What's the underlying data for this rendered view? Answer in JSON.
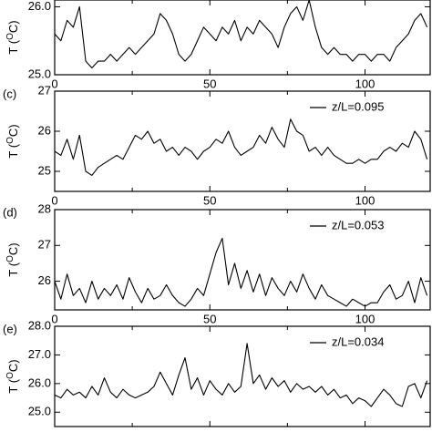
{
  "chart_data": [
    {
      "type": "line",
      "ylabel": {
        "prefix": "T (",
        "sup": "O",
        "suffix": "C)"
      },
      "x": [
        0,
        2,
        4,
        6,
        8,
        10,
        12,
        14,
        16,
        18,
        20,
        22,
        24,
        26,
        28,
        30,
        32,
        34,
        36,
        38,
        40,
        42,
        44,
        46,
        48,
        50,
        52,
        54,
        56,
        58,
        60,
        62,
        64,
        66,
        68,
        70,
        72,
        74,
        76,
        78,
        80,
        82,
        84,
        86,
        88,
        90,
        92,
        94,
        96,
        98,
        100,
        102,
        104,
        106,
        108,
        110,
        112,
        114,
        116,
        118,
        120
      ],
      "series": [
        {
          "color": "#000000",
          "values": [
            25.6,
            25.5,
            25.8,
            25.7,
            26.0,
            25.2,
            25.1,
            25.2,
            25.2,
            25.3,
            25.2,
            25.3,
            25.4,
            25.3,
            25.4,
            25.5,
            25.6,
            25.9,
            25.8,
            25.6,
            25.3,
            25.2,
            25.3,
            25.5,
            25.7,
            25.6,
            25.5,
            25.7,
            25.6,
            25.8,
            25.5,
            25.7,
            25.6,
            25.8,
            25.7,
            25.6,
            25.4,
            25.7,
            25.9,
            26.0,
            25.8,
            26.1,
            25.7,
            25.4,
            25.3,
            25.4,
            25.3,
            25.3,
            25.2,
            25.3,
            25.3,
            25.2,
            25.3,
            25.3,
            25.2,
            25.4,
            25.5,
            25.6,
            25.8,
            25.9,
            25.7
          ]
        }
      ],
      "xlim": [
        0,
        121
      ],
      "xticks": [
        0,
        50,
        100
      ],
      "xminor": [
        25,
        75
      ],
      "xtick_labels": true,
      "ylim": [
        25.0,
        26.1
      ],
      "yticks": [
        {
          "value": 25,
          "label": "25.0"
        },
        {
          "value": 26,
          "label": "26.0"
        }
      ]
    },
    {
      "type": "line",
      "panel_label": "(c)",
      "ylabel": {
        "prefix": "T (",
        "sup": "O",
        "suffix": "C)"
      },
      "x": [
        0,
        2,
        4,
        6,
        8,
        10,
        12,
        14,
        16,
        18,
        20,
        22,
        24,
        26,
        28,
        30,
        32,
        34,
        36,
        38,
        40,
        42,
        44,
        46,
        48,
        50,
        52,
        54,
        56,
        58,
        60,
        62,
        64,
        66,
        68,
        70,
        72,
        74,
        76,
        78,
        80,
        82,
        84,
        86,
        88,
        90,
        92,
        94,
        96,
        98,
        100,
        102,
        104,
        106,
        108,
        110,
        112,
        114,
        116,
        118,
        120
      ],
      "series": [
        {
          "name": "z/L=0.095",
          "color": "#000000",
          "values": [
            25.5,
            25.4,
            25.8,
            25.3,
            25.9,
            25.0,
            24.9,
            25.1,
            25.2,
            25.3,
            25.4,
            25.3,
            25.6,
            25.9,
            25.8,
            26.0,
            25.7,
            25.8,
            25.5,
            25.6,
            25.4,
            25.6,
            25.5,
            25.3,
            25.5,
            25.6,
            25.8,
            25.7,
            26.0,
            25.6,
            25.4,
            25.5,
            25.6,
            25.9,
            25.7,
            26.1,
            25.8,
            25.6,
            26.3,
            26.0,
            25.9,
            25.5,
            25.6,
            25.4,
            25.6,
            25.4,
            25.3,
            25.2,
            25.2,
            25.3,
            25.2,
            25.3,
            25.3,
            25.5,
            25.6,
            25.5,
            25.7,
            25.6,
            26.0,
            25.8,
            25.3
          ]
        }
      ],
      "xlim": [
        0,
        121
      ],
      "xticks": [
        0,
        50,
        100
      ],
      "xminor": [
        25,
        75
      ],
      "xtick_labels": true,
      "ylim": [
        24.5,
        27.0
      ],
      "yticks": [
        25,
        26,
        27
      ]
    },
    {
      "type": "line",
      "panel_label": "(d)",
      "ylabel": {
        "prefix": "T (",
        "sup": "O",
        "suffix": "C)"
      },
      "x": [
        0,
        2,
        4,
        6,
        8,
        10,
        12,
        14,
        16,
        18,
        20,
        22,
        24,
        26,
        28,
        30,
        32,
        34,
        36,
        38,
        40,
        42,
        44,
        46,
        48,
        50,
        52,
        54,
        56,
        58,
        60,
        62,
        64,
        66,
        68,
        70,
        72,
        74,
        76,
        78,
        80,
        82,
        84,
        86,
        88,
        90,
        92,
        94,
        96,
        98,
        100,
        102,
        104,
        106,
        108,
        110,
        112,
        114,
        116,
        118,
        120
      ],
      "series": [
        {
          "name": "z/L=0.053",
          "color": "#000000",
          "values": [
            26.0,
            25.5,
            26.2,
            25.6,
            25.8,
            25.4,
            26.0,
            25.5,
            25.8,
            25.6,
            25.9,
            25.5,
            26.1,
            25.7,
            25.4,
            25.8,
            25.5,
            25.6,
            25.9,
            25.6,
            25.4,
            25.3,
            25.5,
            25.8,
            25.6,
            26.2,
            26.8,
            27.2,
            25.9,
            26.5,
            25.8,
            26.3,
            25.7,
            26.2,
            25.6,
            26.1,
            25.8,
            25.6,
            26.0,
            25.7,
            26.2,
            25.8,
            25.5,
            25.9,
            25.6,
            25.5,
            25.4,
            25.3,
            25.5,
            25.4,
            25.3,
            25.4,
            25.4,
            25.7,
            25.9,
            25.5,
            25.6,
            26.0,
            25.4,
            26.1,
            25.6
          ]
        }
      ],
      "xlim": [
        0,
        121
      ],
      "xticks": [
        0,
        50,
        100
      ],
      "xminor": [
        25,
        75
      ],
      "xtick_labels": true,
      "ylim": [
        25.2,
        28.0
      ],
      "yticks": [
        26,
        27,
        28
      ]
    },
    {
      "type": "line",
      "panel_label": "(e)",
      "ylabel": {
        "prefix": "T (",
        "sup": "O",
        "suffix": "C)"
      },
      "x": [
        0,
        2,
        4,
        6,
        8,
        10,
        12,
        14,
        16,
        18,
        20,
        22,
        24,
        26,
        28,
        30,
        32,
        34,
        36,
        38,
        40,
        42,
        44,
        46,
        48,
        50,
        52,
        54,
        56,
        58,
        60,
        62,
        64,
        66,
        68,
        70,
        72,
        74,
        76,
        78,
        80,
        82,
        84,
        86,
        88,
        90,
        92,
        94,
        96,
        98,
        100,
        102,
        104,
        106,
        108,
        110,
        112,
        114,
        116,
        118,
        120
      ],
      "series": [
        {
          "name": "z/L=0.034",
          "color": "#000000",
          "values": [
            25.6,
            25.5,
            25.8,
            25.6,
            25.7,
            25.5,
            25.9,
            25.6,
            26.2,
            25.7,
            25.5,
            25.8,
            25.6,
            25.5,
            25.6,
            25.7,
            25.9,
            26.4,
            26.0,
            25.6,
            26.3,
            26.9,
            25.8,
            26.2,
            25.6,
            26.1,
            25.8,
            25.6,
            26.0,
            25.7,
            25.9,
            27.4,
            26.0,
            26.3,
            25.8,
            26.2,
            25.9,
            26.1,
            25.7,
            26.0,
            25.8,
            25.9,
            25.7,
            25.9,
            25.6,
            25.8,
            25.5,
            25.6,
            25.3,
            25.5,
            25.4,
            25.2,
            25.5,
            25.8,
            25.6,
            25.3,
            25.2,
            25.9,
            26.0,
            25.5,
            26.1
          ]
        }
      ],
      "xlim": [
        0,
        121
      ],
      "xticks": [
        0,
        50,
        100
      ],
      "xminor": [
        25,
        75
      ],
      "xtick_labels": false,
      "ylim": [
        24.5,
        28.0
      ],
      "yticks": [
        {
          "value": 25,
          "label": "25.0"
        },
        {
          "value": 26,
          "label": "26.0"
        },
        {
          "value": 27,
          "label": "27.0"
        },
        {
          "value": 28,
          "label": "28.0"
        }
      ]
    }
  ]
}
